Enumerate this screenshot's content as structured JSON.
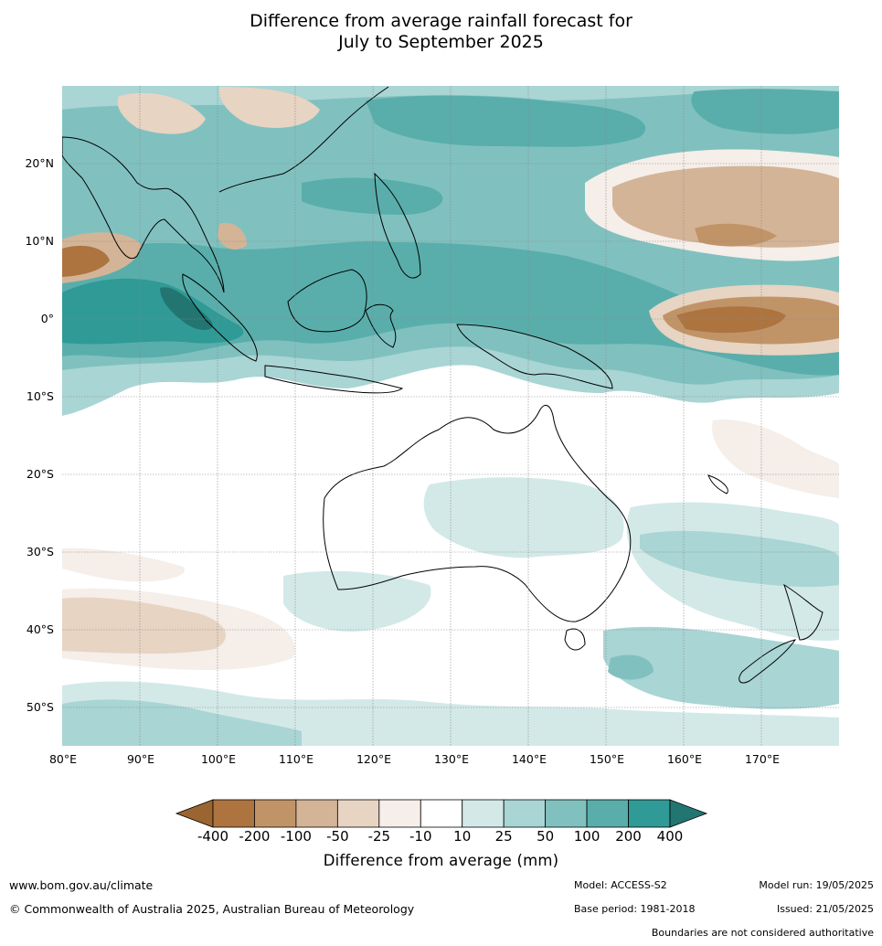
{
  "title": {
    "line1": "Difference from average rainfall forecast for",
    "line2": "July to September 2025"
  },
  "map": {
    "lat_labels": [
      "20°N",
      "10°N",
      "0°",
      "10°S",
      "20°S",
      "30°S",
      "40°S",
      "50°S"
    ],
    "lon_labels": [
      "80°E",
      "90°E",
      "100°E",
      "110°E",
      "120°E",
      "130°E",
      "140°E",
      "150°E",
      "160°E",
      "170°E"
    ],
    "extent": {
      "lon_min": 80,
      "lon_max": 180,
      "lat_min": -55,
      "lat_max": 30
    }
  },
  "legend": {
    "title": "Difference from average (mm)",
    "ticks": [
      "-400",
      "-200",
      "-100",
      "-50",
      "-25",
      "-10",
      "10",
      "25",
      "50",
      "100",
      "200",
      "400"
    ],
    "colors": [
      "#9a6531",
      "#ad7440",
      "#c19468",
      "#d4b497",
      "#e7d4c3",
      "#f5eee9",
      "#ffffff",
      "#d3e9e8",
      "#a9d5d4",
      "#80c1bf",
      "#59aeab",
      "#2f9a96",
      "#227571"
    ]
  },
  "footer": {
    "url": "www.bom.gov.au/climate",
    "copyright": "© Commonwealth of Australia 2025, Australian Bureau of Meteorology",
    "model": "Model: ACCESS-S2",
    "base_period": "Base period: 1981-2018",
    "model_run": "Model run: 19/05/2025",
    "issued": "Issued: 21/05/2025",
    "boundaries": "Boundaries are not considered authoritative"
  }
}
